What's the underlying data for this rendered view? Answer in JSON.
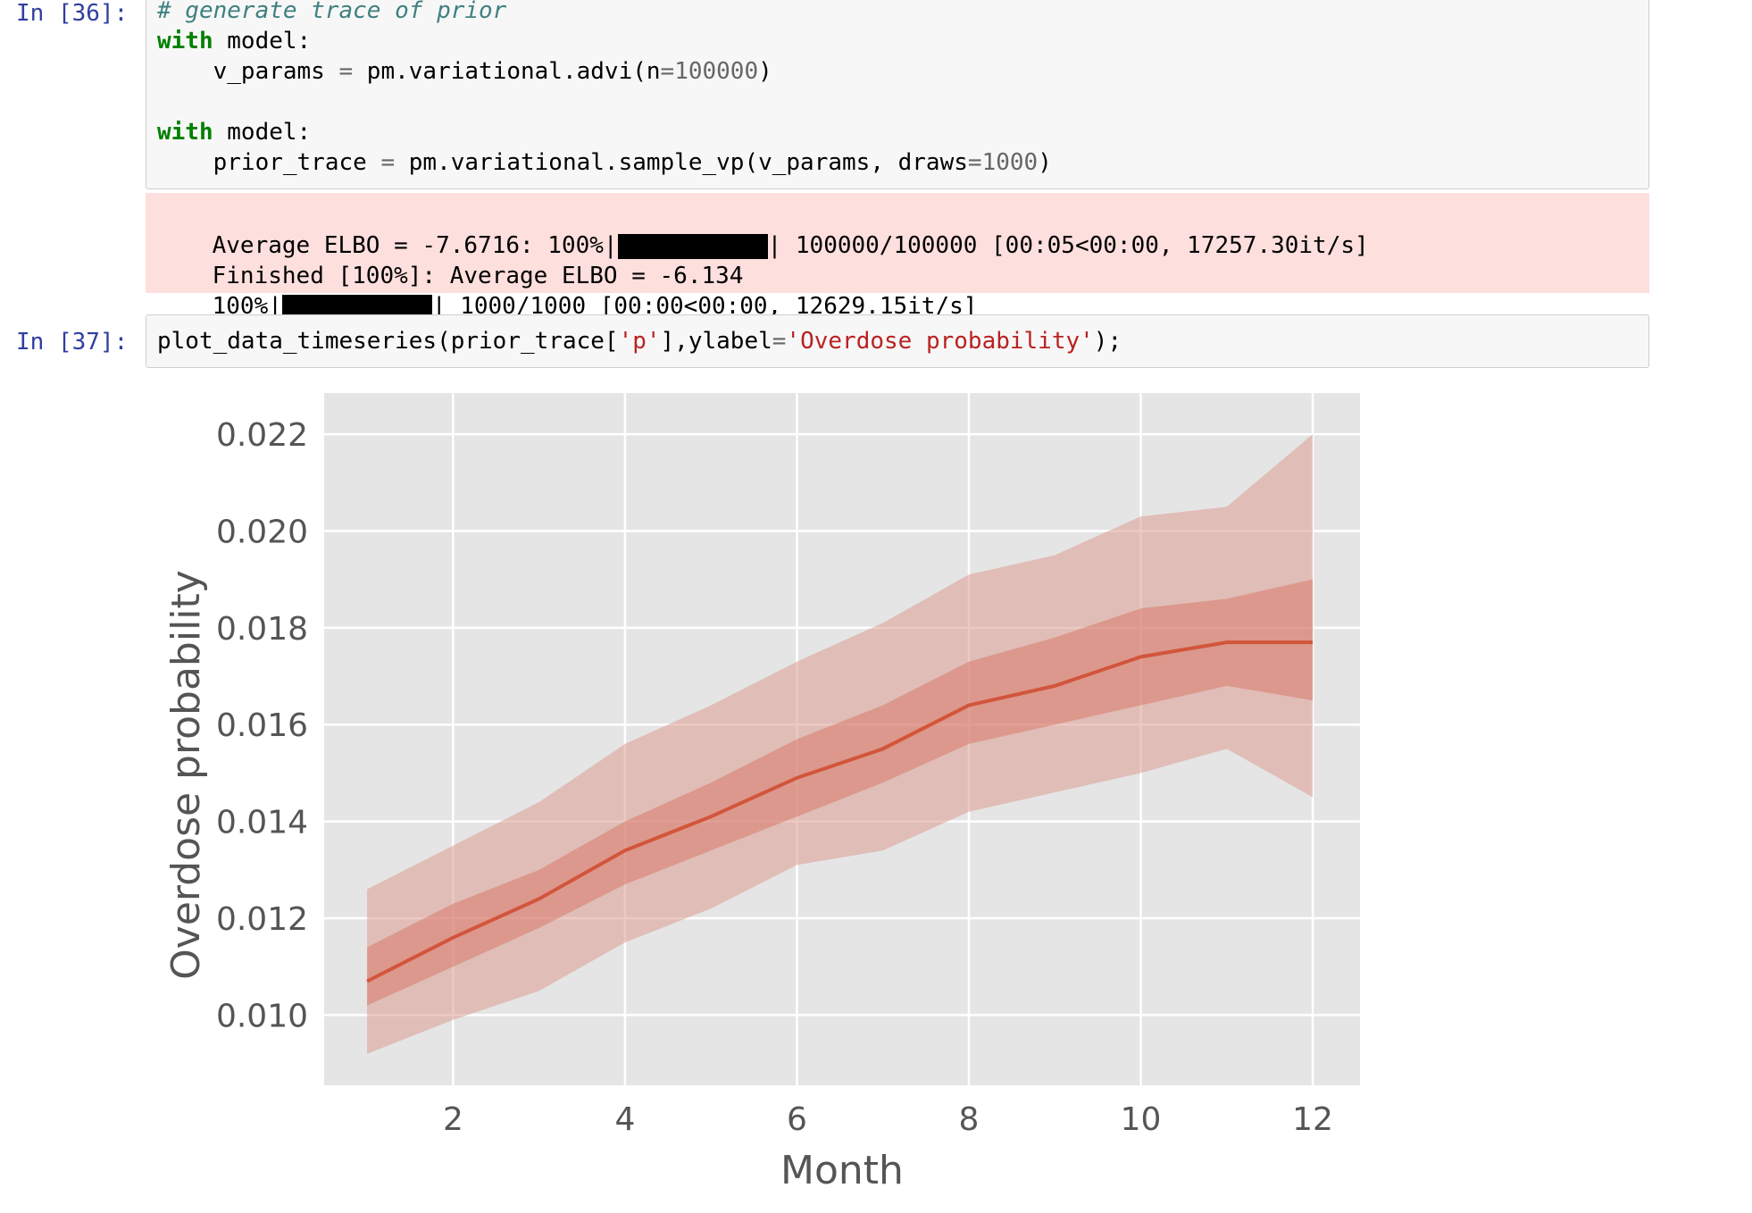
{
  "cells": [
    {
      "prompt": "In [36]:",
      "code": [
        [
          {
            "t": "# generate trace of prior",
            "c": "cm"
          }
        ],
        [
          {
            "t": "with",
            "c": "kw"
          },
          {
            "t": " model:",
            "c": ""
          }
        ],
        [
          {
            "t": "    v_params ",
            "c": ""
          },
          {
            "t": "=",
            "c": "op"
          },
          {
            "t": " pm.variational.advi(n",
            "c": ""
          },
          {
            "t": "=",
            "c": "op"
          },
          {
            "t": "100000",
            "c": "num"
          },
          {
            "t": ")",
            "c": ""
          }
        ],
        [
          {
            "t": "",
            "c": ""
          }
        ],
        [
          {
            "t": "with",
            "c": "kw"
          },
          {
            "t": " model:",
            "c": ""
          }
        ],
        [
          {
            "t": "    prior_trace ",
            "c": ""
          },
          {
            "t": "=",
            "c": "op"
          },
          {
            "t": " pm.variational.sample_vp(v_params, draws",
            "c": ""
          },
          {
            "t": "=",
            "c": "op"
          },
          {
            "t": "1000",
            "c": "num"
          },
          {
            "t": ")",
            "c": ""
          }
        ]
      ],
      "stderr": {
        "line1_pre": "Average ELBO = -7.6716: 100%|",
        "line1_post": "| 100000/100000 [00:05<00:00, 17257.30it/s]",
        "line2": "Finished [100%]: Average ELBO = -6.134",
        "line3_pre": "100%|",
        "line3_post": "| 1000/1000 [00:00<00:00, 12629.15it/s]",
        "progress": [
          1.0,
          1.0
        ]
      }
    },
    {
      "prompt": "In [37]:",
      "code": [
        [
          {
            "t": "plot_data_timeseries(prior_trace[",
            "c": ""
          },
          {
            "t": "'p'",
            "c": "str"
          },
          {
            "t": "],ylabel",
            "c": ""
          },
          {
            "t": "=",
            "c": "op"
          },
          {
            "t": "'Overdose probability'",
            "c": "str"
          },
          {
            "t": ");",
            "c": ""
          }
        ]
      ]
    }
  ],
  "chart_data": {
    "type": "line",
    "x": [
      1,
      2,
      3,
      4,
      5,
      6,
      7,
      8,
      9,
      10,
      11,
      12
    ],
    "series": [
      {
        "values": [
          0.0107,
          0.0116,
          0.0124,
          0.0134,
          0.0141,
          0.0149,
          0.0155,
          0.0164,
          0.0168,
          0.0174,
          0.0177,
          0.0177
        ]
      }
    ],
    "band_inner": {
      "lower": [
        0.0102,
        0.011,
        0.0118,
        0.0127,
        0.0134,
        0.0141,
        0.0148,
        0.0156,
        0.016,
        0.0164,
        0.0168,
        0.0165
      ],
      "upper": [
        0.0114,
        0.0123,
        0.013,
        0.014,
        0.0148,
        0.0157,
        0.0164,
        0.0173,
        0.0178,
        0.0184,
        0.0186,
        0.019
      ]
    },
    "band_outer": {
      "lower": [
        0.0092,
        0.0099,
        0.0105,
        0.0115,
        0.0122,
        0.0131,
        0.0134,
        0.0142,
        0.0146,
        0.015,
        0.0155,
        0.0145
      ],
      "upper": [
        0.0126,
        0.0135,
        0.0144,
        0.0156,
        0.0164,
        0.0173,
        0.0181,
        0.0191,
        0.0195,
        0.0203,
        0.0205,
        0.022
      ]
    },
    "xticks": [
      2,
      4,
      6,
      8,
      10,
      12
    ],
    "yticks": [
      0.01,
      0.012,
      0.014,
      0.016,
      0.018,
      0.02,
      0.022
    ],
    "ytick_labels": [
      "0.010",
      "0.012",
      "0.014",
      "0.016",
      "0.018",
      "0.020",
      "0.022"
    ],
    "xlim": [
      0.5,
      12.55
    ],
    "ylim": [
      0.00855,
      0.02285
    ],
    "xlabel": "Month",
    "ylabel": "Overdose probability",
    "grid": true,
    "colors": {
      "line": "#d2553b",
      "band_inner": "#d97a6a",
      "band_outer": "#dd9c92",
      "background": "#e5e5e5",
      "grid": "#ffffff"
    }
  }
}
